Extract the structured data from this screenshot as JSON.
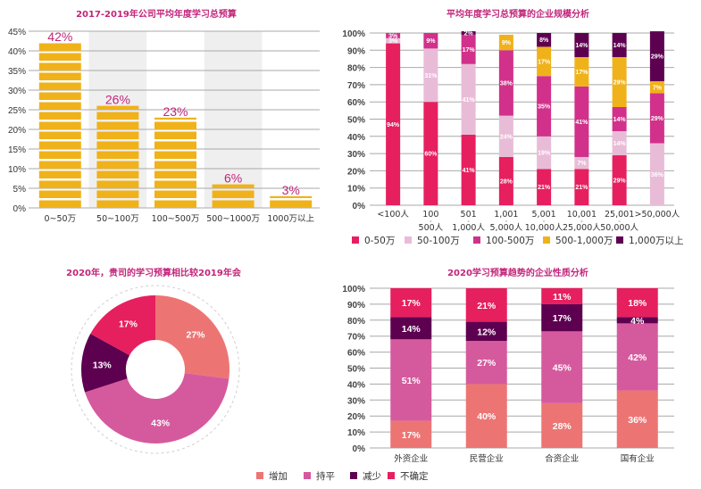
{
  "chart_data": [
    {
      "id": "budget_distribution",
      "type": "bar",
      "title": "2017-2019年公司平均年度学习总预算",
      "categories": [
        "0~50万",
        "50~100万",
        "100~500万",
        "500~1000万",
        "1000万以上"
      ],
      "values": [
        42,
        26,
        23,
        6,
        3
      ],
      "value_labels": [
        "42%",
        "26%",
        "23%",
        "6%",
        "3%"
      ],
      "xlabel": "",
      "ylabel": "",
      "ylim": [
        0,
        45
      ],
      "yticks": [
        0,
        5,
        10,
        15,
        20,
        25,
        30,
        35,
        40,
        45
      ],
      "ytick_labels": [
        "0%",
        "5%",
        "10%",
        "15%",
        "20%",
        "25%",
        "30%",
        "35%",
        "40%",
        "45%"
      ],
      "grid": true,
      "bar_color": "#f0b21a",
      "label_color": "#c2257a"
    },
    {
      "id": "company_size",
      "type": "bar",
      "stacked": true,
      "title": "平均年度学习总预算的企业规模分析",
      "categories": [
        [
          "<100人"
        ],
        [
          "100",
          "500人"
        ],
        [
          "501",
          "1,000人"
        ],
        [
          "1,001",
          "5,000人"
        ],
        [
          "5,001",
          "10,000人"
        ],
        [
          "10,001",
          "25,000人"
        ],
        [
          "25,001",
          "50,000人"
        ],
        [
          ">50,000人"
        ]
      ],
      "series": [
        {
          "name": "0-50万",
          "color": "#e61f5f",
          "values": [
            94,
            60,
            41,
            28,
            21,
            21,
            29,
            0
          ]
        },
        {
          "name": "50-100万",
          "color": "#e8bcd7",
          "values": [
            3,
            31,
            41,
            24,
            19,
            7,
            14,
            36
          ]
        },
        {
          "name": "100-500万",
          "color": "#d1318b",
          "values": [
            3,
            9,
            17,
            38,
            35,
            41,
            14,
            29
          ]
        },
        {
          "name": "500-1,000万",
          "color": "#f0b21a",
          "values": [
            0,
            0,
            0,
            9,
            17,
            17,
            29,
            7
          ]
        },
        {
          "name": "1,000万以上",
          "color": "#5e0050",
          "values": [
            0,
            0,
            2,
            0,
            8,
            14,
            14,
            29
          ]
        }
      ],
      "ylim": [
        0,
        100
      ],
      "yticks": [
        0,
        10,
        20,
        30,
        40,
        50,
        60,
        70,
        80,
        90,
        100
      ],
      "ytick_labels": [
        "0%",
        "10%",
        "20%",
        "30%",
        "40%",
        "50%",
        "60%",
        "70%",
        "80%",
        "90%",
        "100%"
      ],
      "grid": true,
      "legend": "bottom"
    },
    {
      "id": "budget_change_2020",
      "type": "pie",
      "donut": true,
      "title": "2020年，贵司的学习预算相比较2019年会",
      "slices": [
        {
          "name": "增加",
          "value": 27,
          "label": "27%",
          "color": "#ec7574"
        },
        {
          "name": "持平",
          "value": 43,
          "label": "43%",
          "color": "#d55a9d"
        },
        {
          "name": "减少",
          "value": 13,
          "label": "13%",
          "color": "#5e0050"
        },
        {
          "name": "不确定",
          "value": 17,
          "label": "17%",
          "color": "#e61f5f"
        }
      ]
    },
    {
      "id": "company_type_trend",
      "type": "bar",
      "stacked": true,
      "title": "2020学习预算趋势的企业性质分析",
      "categories": [
        "外资企业",
        "民营企业",
        "合资企业",
        "国有企业"
      ],
      "series": [
        {
          "name": "增加",
          "color": "#ec7574",
          "values": [
            17,
            40,
            28,
            36
          ]
        },
        {
          "name": "持平",
          "color": "#d55a9d",
          "values": [
            51,
            27,
            45,
            42
          ]
        },
        {
          "name": "减少",
          "color": "#5e0050",
          "values": [
            14,
            12,
            17,
            4
          ]
        },
        {
          "name": "不确定",
          "color": "#e61f5f",
          "values": [
            17,
            21,
            11,
            18
          ]
        }
      ],
      "ylim": [
        0,
        100
      ],
      "yticks": [
        0,
        10,
        20,
        30,
        40,
        50,
        60,
        70,
        80,
        90,
        100
      ],
      "ytick_labels": [
        "0%",
        "10%",
        "20%",
        "30%",
        "40%",
        "50%",
        "60%",
        "70%",
        "80%",
        "90%",
        "100%"
      ],
      "grid": true,
      "legend": "bottom"
    }
  ]
}
